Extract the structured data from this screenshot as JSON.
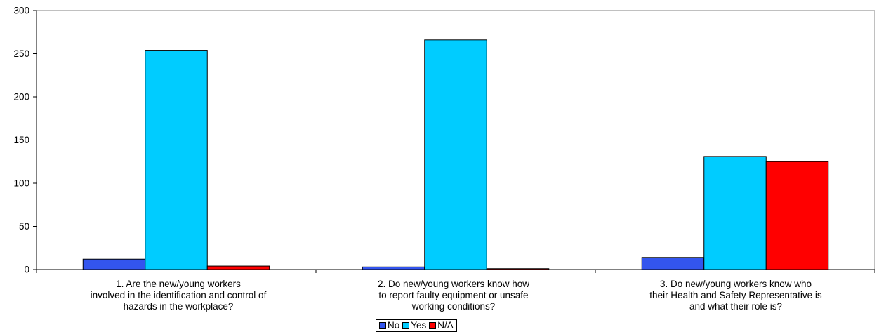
{
  "chart_data": {
    "type": "bar",
    "title": "",
    "xlabel": "",
    "ylabel": "",
    "ylim": [
      0,
      300
    ],
    "yticks": [
      0,
      50,
      100,
      150,
      200,
      250,
      300
    ],
    "grid": false,
    "legend_position": "bottom",
    "categories": [
      "1.        Are the new/young workers\ninvolved in the identification and control of\nhazards in the workplace?",
      "2.        Do new/young workers know how\nto report faulty equipment or unsafe\nworking conditions?",
      "3.        Do new/young workers know who\ntheir Health and Safety Representative is\nand what their role is?"
    ],
    "series": [
      {
        "name": "No",
        "color": "#3355ee",
        "values": [
          12,
          3,
          14
        ]
      },
      {
        "name": "Yes",
        "color": "#00ccff",
        "values": [
          254,
          266,
          131
        ]
      },
      {
        "name": "N/A",
        "color": "#ff0000",
        "values": [
          4,
          1,
          125
        ]
      }
    ]
  }
}
